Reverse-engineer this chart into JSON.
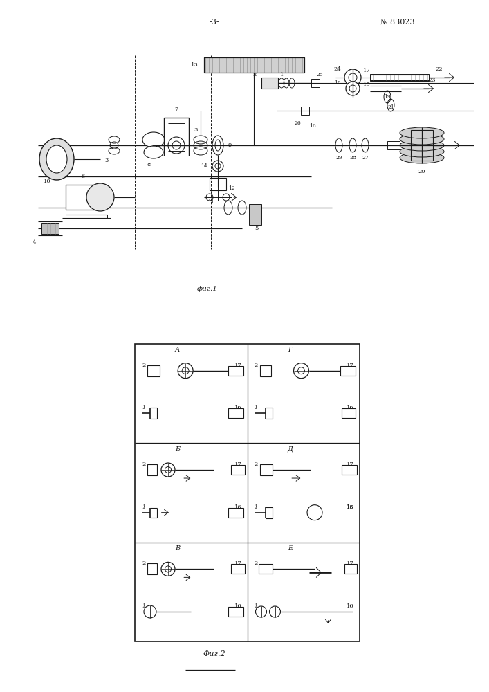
{
  "page_num": "-3-",
  "patent_num": "№ 83023",
  "fig1_label": "фиг.1",
  "fig2_label": "Фиг.2",
  "bg_color": "#ffffff",
  "lc": "#1a1a1a"
}
